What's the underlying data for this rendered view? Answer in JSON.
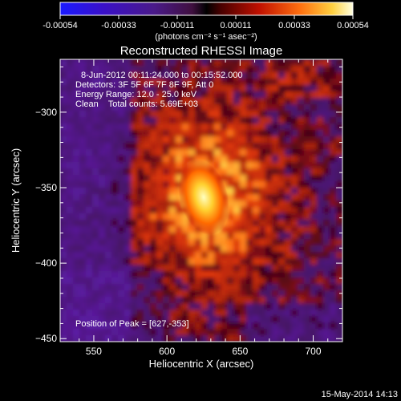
{
  "colorbar": {
    "ticks": [
      "-0.00054",
      "-0.00033",
      "-0.00011",
      "0.00011",
      "0.00033",
      "0.00054"
    ],
    "unit_label": "(photons cm⁻² s⁻¹ asec⁻²)",
    "range": [
      -0.00054,
      0.00054
    ]
  },
  "chart_data": {
    "type": "heatmap",
    "title": "Reconstructed RHESSI Image",
    "info_lines": [
      "8-Jun-2012 00:11:24.000 to 00:15:52.000",
      "Detectors: 3F 5F 6F 7F 8F 9F, Att 0",
      "Energy Range: 12.0 - 25.0 keV",
      "Clean    Total counts: 5.69E+03"
    ],
    "peak_label": "Position of Peak = [627,-353]",
    "peak": [
      627,
      -353
    ],
    "xlabel": "Heliocentric X (arcsec)",
    "ylabel": "Heliocentric Y (arcsec)",
    "xlim": [
      527,
      720
    ],
    "ylim": [
      -452,
      -265
    ],
    "xticks": [
      550,
      600,
      650,
      700
    ],
    "yticks": [
      -300,
      -350,
      -400,
      -450
    ],
    "xtick_labels": [
      "550",
      "600",
      "650",
      "700"
    ],
    "ytick_labels": [
      "−300",
      "−350",
      "−400",
      "−450"
    ]
  },
  "footer_timestamp": "15-May-2014 14:13"
}
